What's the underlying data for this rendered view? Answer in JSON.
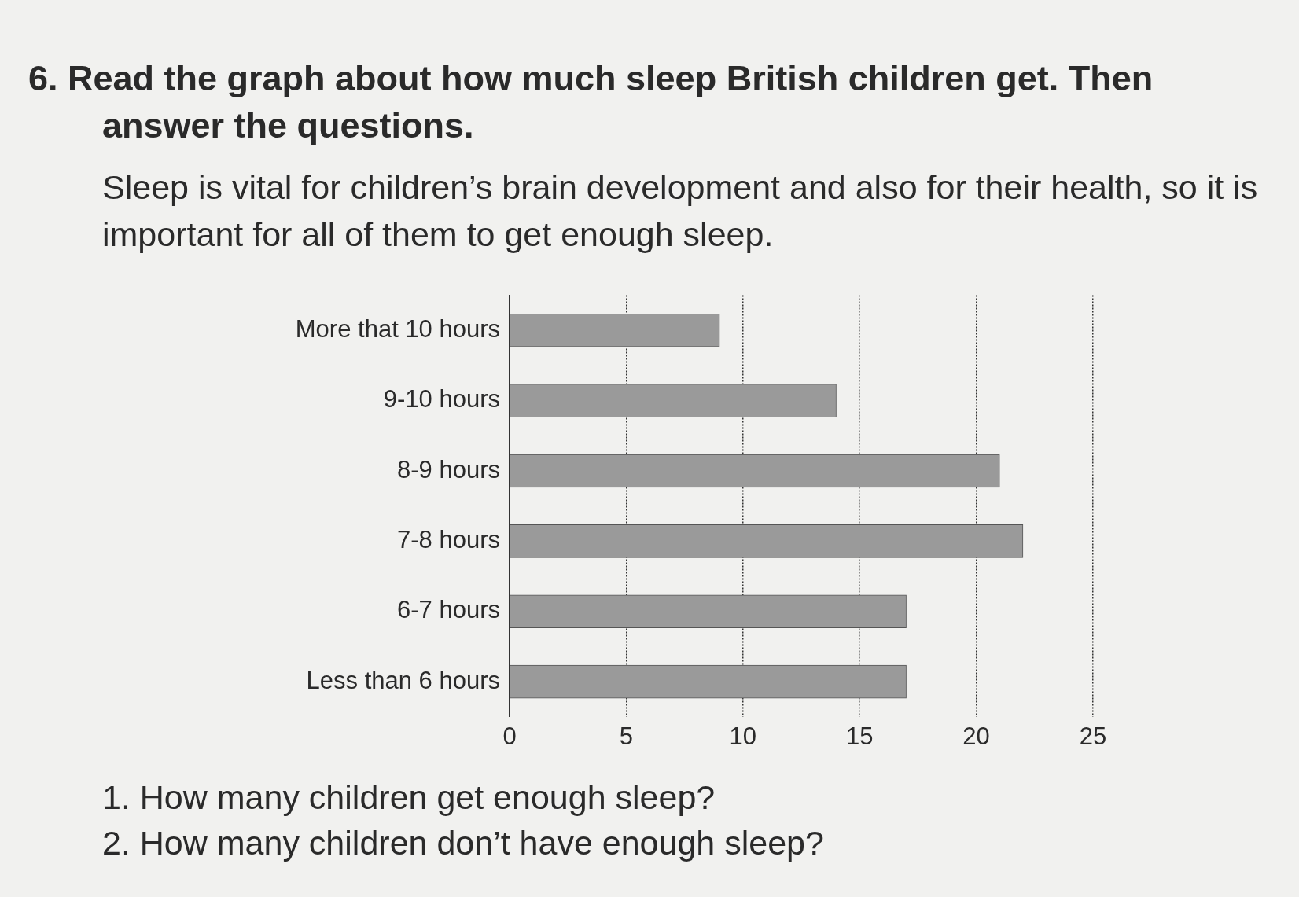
{
  "chart_data": {
    "type": "bar",
    "orientation": "horizontal",
    "title": "6.  Read the graph about how much sleep British children get. Then answer the questions.",
    "subtitle": "Sleep is vital for children’s brain development and also for their health, so it is important for all of them to get enough sleep.",
    "categories": [
      "More that 10 hours",
      "9-10 hours",
      "8-9 hours",
      "7-8 hours",
      "6-7 hours",
      "Less than 6 hours"
    ],
    "values": [
      9,
      14,
      21,
      22,
      17,
      17
    ],
    "color": "#9a9a9a",
    "xlim": [
      0,
      25
    ],
    "xticks": [
      0,
      5,
      10,
      15,
      20,
      25
    ],
    "grid": "x",
    "legend": false,
    "annotations": [
      "1.  How many children get enough sleep?",
      "2.  How many children don’t have enough sleep?"
    ]
  }
}
